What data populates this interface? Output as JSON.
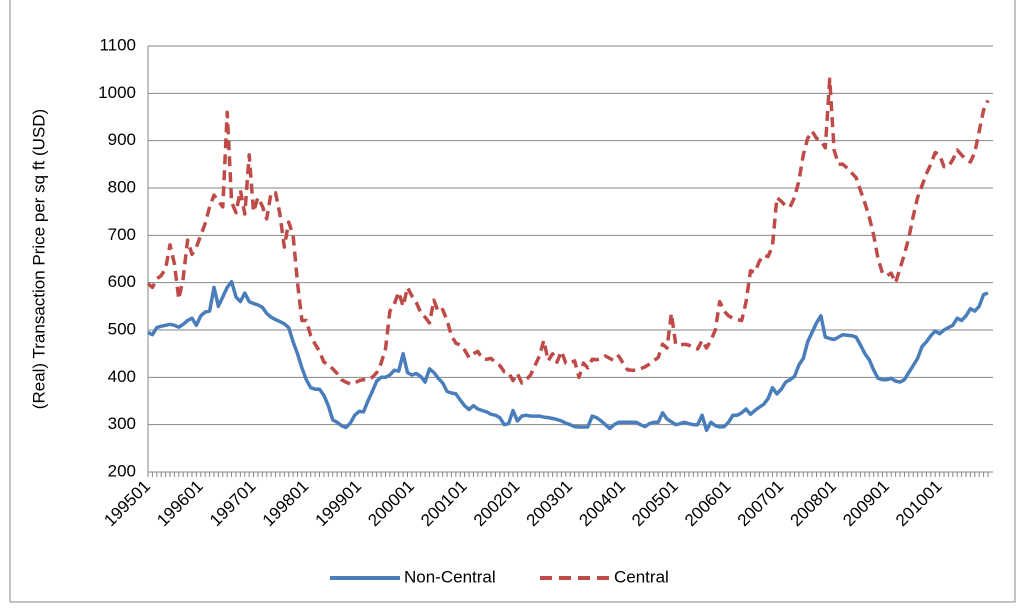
{
  "chart_data": {
    "type": "line",
    "y_label": "(Real) Transaction Price per sq ft (USD)",
    "categories": [
      "199501",
      null,
      null,
      null,
      null,
      null,
      null,
      null,
      null,
      null,
      null,
      null,
      "199601",
      null,
      null,
      null,
      null,
      null,
      null,
      null,
      null,
      null,
      null,
      null,
      "199701",
      null,
      null,
      null,
      null,
      null,
      null,
      null,
      null,
      null,
      null,
      null,
      "199801",
      null,
      null,
      null,
      null,
      null,
      null,
      null,
      null,
      null,
      null,
      null,
      "199901",
      null,
      null,
      null,
      null,
      null,
      null,
      null,
      null,
      null,
      null,
      null,
      "200001",
      null,
      null,
      null,
      null,
      null,
      null,
      null,
      null,
      null,
      null,
      null,
      "200101",
      null,
      null,
      null,
      null,
      null,
      null,
      null,
      null,
      null,
      null,
      null,
      "200201",
      null,
      null,
      null,
      null,
      null,
      null,
      null,
      null,
      null,
      null,
      null,
      "200301",
      null,
      null,
      null,
      null,
      null,
      null,
      null,
      null,
      null,
      null,
      null,
      "200401",
      null,
      null,
      null,
      null,
      null,
      null,
      null,
      null,
      null,
      null,
      null,
      "200501",
      null,
      null,
      null,
      null,
      null,
      null,
      null,
      null,
      null,
      null,
      null,
      "200601",
      null,
      null,
      null,
      null,
      null,
      null,
      null,
      null,
      null,
      null,
      null,
      "200701",
      null,
      null,
      null,
      null,
      null,
      null,
      null,
      null,
      null,
      null,
      null,
      "200801",
      null,
      null,
      null,
      null,
      null,
      null,
      null,
      null,
      null,
      null,
      null,
      "200901",
      null,
      null,
      null,
      null,
      null,
      null,
      null,
      null,
      null,
      null,
      null,
      "201001",
      null,
      null,
      null,
      null,
      null,
      null,
      null,
      null,
      null,
      null,
      null
    ],
    "series": [
      {
        "name": "Non-Central",
        "color": "#4a7ebb",
        "line_style": "solid",
        "values": [
          495,
          490,
          505,
          508,
          510,
          512,
          510,
          506,
          512,
          520,
          525,
          510,
          530,
          538,
          540,
          590,
          550,
          570,
          590,
          602,
          570,
          560,
          578,
          560,
          556,
          553,
          548,
          535,
          527,
          522,
          518,
          513,
          505,
          475,
          450,
          420,
          395,
          378,
          375,
          375,
          362,
          340,
          310,
          305,
          298,
          294,
          303,
          320,
          328,
          327,
          350,
          370,
          392,
          400,
          400,
          405,
          415,
          413,
          450,
          410,
          405,
          408,
          402,
          390,
          418,
          410,
          398,
          388,
          370,
          367,
          365,
          352,
          340,
          332,
          340,
          333,
          330,
          327,
          322,
          320,
          315,
          300,
          302,
          330,
          308,
          318,
          320,
          318,
          318,
          318,
          316,
          315,
          313,
          311,
          308,
          303,
          300,
          296,
          295,
          295,
          295,
          318,
          315,
          308,
          300,
          292,
          300,
          305,
          305,
          305,
          305,
          305,
          300,
          296,
          302,
          305,
          305,
          325,
          312,
          306,
          300,
          302,
          305,
          302,
          300,
          300,
          320,
          288,
          305,
          298,
          295,
          296,
          305,
          320,
          320,
          325,
          333,
          322,
          330,
          337,
          343,
          355,
          378,
          365,
          375,
          390,
          395,
          402,
          426,
          440,
          475,
          495,
          515,
          530,
          485,
          482,
          480,
          485,
          490,
          489,
          488,
          485,
          468,
          450,
          437,
          415,
          398,
          395,
          395,
          398,
          392,
          390,
          395,
          410,
          425,
          440,
          465,
          475,
          488,
          498,
          492,
          500,
          505,
          510,
          525,
          520,
          530,
          545,
          540,
          550,
          575,
          578
        ]
      },
      {
        "name": "Central",
        "color": "#be4b48",
        "line_style": "dashed",
        "values": [
          598,
          590,
          608,
          615,
          630,
          680,
          640,
          565,
          610,
          690,
          660,
          675,
          700,
          725,
          760,
          785,
          772,
          760,
          960,
          770,
          748,
          795,
          745,
          870,
          750,
          780,
          762,
          735,
          790,
          790,
          745,
          675,
          728,
          700,
          600,
          520,
          520,
          488,
          470,
          455,
          432,
          428,
          418,
          408,
          395,
          390,
          386,
          388,
          393,
          395,
          395,
          400,
          410,
          430,
          460,
          540,
          555,
          580,
          550,
          590,
          572,
          558,
          537,
          527,
          515,
          563,
          538,
          543,
          520,
          488,
          472,
          468,
          458,
          442,
          450,
          455,
          440,
          438,
          440,
          432,
          425,
          412,
          410,
          393,
          408,
          388,
          395,
          405,
          425,
          445,
          478,
          435,
          450,
          432,
          455,
          430,
          430,
          435,
          400,
          430,
          420,
          438,
          437,
          440,
          445,
          440,
          435,
          445,
          430,
          416,
          415,
          415,
          418,
          422,
          428,
          435,
          442,
          470,
          462,
          535,
          470,
          468,
          470,
          468,
          462,
          460,
          478,
          462,
          478,
          500,
          560,
          540,
          530,
          525,
          522,
          520,
          560,
          625,
          622,
          645,
          658,
          655,
          678,
          780,
          772,
          762,
          760,
          780,
          815,
          870,
          905,
          920,
          905,
          900,
          885,
          1030,
          880,
          850,
          850,
          842,
          832,
          822,
          795,
          768,
          738,
          700,
          650,
          620,
          615,
          620,
          600,
          630,
          660,
          695,
          740,
          780,
          805,
          830,
          850,
          875,
          870,
          845,
          845,
          860,
          880,
          870,
          860,
          855,
          875,
          920,
          965,
          985
        ]
      }
    ],
    "ylim": [
      200,
      1100
    ],
    "yticks": [
      200,
      300,
      400,
      500,
      600,
      700,
      800,
      900,
      1000,
      1100
    ],
    "grid": true,
    "legend": "bottom"
  }
}
